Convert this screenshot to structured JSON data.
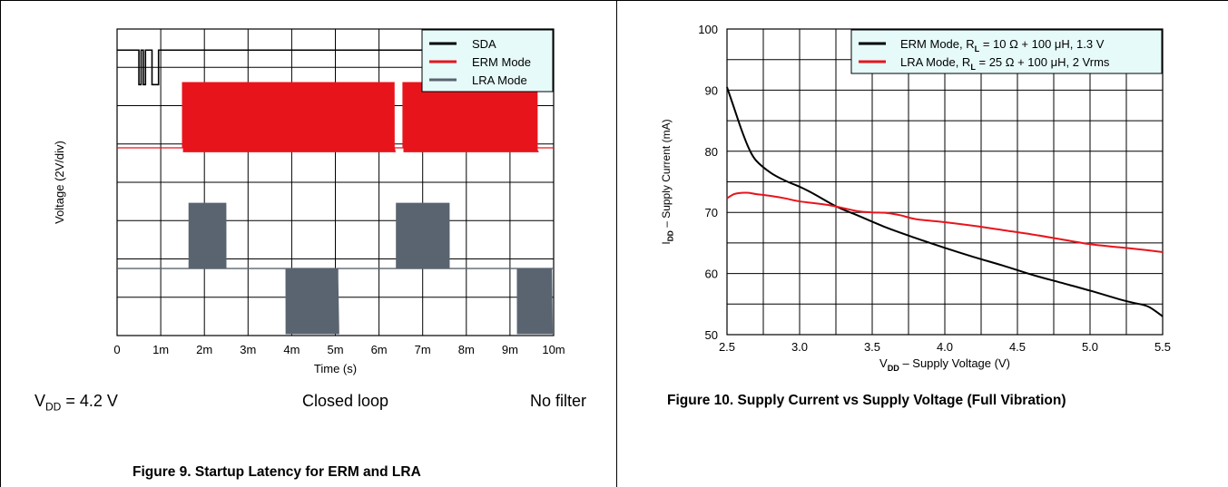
{
  "colors": {
    "sda": "#000000",
    "erm": "#e8141c",
    "lra": "#5a6470",
    "erm_current": "#000000",
    "lra_current": "#e8141c",
    "legend_bg": "#e6fafa"
  },
  "left_panel": {
    "conditions": {
      "vdd_prefix": "V",
      "vdd_sub": "DD",
      "vdd_suffix": " = 4.2 V",
      "loop": "Closed loop",
      "filter": "No filter"
    },
    "caption": "Figure 9. Startup Latency for ERM and LRA"
  },
  "right_panel": {
    "caption": "Figure 10. Supply Current vs Supply Voltage (Full Vibration)"
  },
  "chart_data": [
    {
      "type": "line",
      "xlabel": "Time (s)",
      "ylabel": "Voltage (2V/div)",
      "x_tick_labels": [
        "0",
        "1m",
        "2m",
        "3m",
        "4m",
        "5m",
        "6m",
        "7m",
        "8m",
        "9m",
        "10m"
      ],
      "xlim": [
        0,
        10
      ],
      "ylim": [
        0,
        8
      ],
      "grid": true,
      "legend_position": "top-right",
      "series": [
        {
          "name": "SDA",
          "low": 6.55,
          "high": 7.45,
          "pulses": [
            [
              0.5,
              0.55
            ],
            [
              0.6,
              0.65
            ],
            [
              0.8,
              0.95
            ]
          ]
        },
        {
          "name": "ERM Mode",
          "baseline": 4.9,
          "low": 4.8,
          "high": 6.6,
          "bursts": [
            [
              1.5,
              6.35
            ],
            [
              6.55,
              9.6
            ]
          ],
          "period": 0.0455
        },
        {
          "name": "LRA Mode",
          "baseline": 1.75,
          "bursts": [
            {
              "start": 1.65,
              "end": 2.5,
              "low": 1.75,
              "high": 3.45
            },
            {
              "start": 3.85,
              "end": 5.05,
              "low": 0.05,
              "high": 1.75
            },
            {
              "start": 6.4,
              "end": 7.6,
              "low": 1.75,
              "high": 3.45
            },
            {
              "start": 9.15,
              "end": 9.95,
              "low": 0.05,
              "high": 1.75
            }
          ],
          "period": 0.0455
        }
      ]
    },
    {
      "type": "line",
      "xlabel_prefix": "V",
      "xlabel_sub": "DD",
      "xlabel_suffix": " – Supply Voltage (V)",
      "ylabel_prefix": "I",
      "ylabel_sub": "DD",
      "ylabel_suffix": " – Supply Current (mA)",
      "xlim": [
        2.5,
        5.5
      ],
      "ylim": [
        50,
        100
      ],
      "x_ticks": [
        2.5,
        3.0,
        3.5,
        4.0,
        4.5,
        5.0,
        5.5
      ],
      "x_tick_labels": [
        "2.5",
        "3.0",
        "3.5",
        "4.0",
        "4.5",
        "5.0",
        "5.5"
      ],
      "y_ticks": [
        50,
        60,
        70,
        80,
        90,
        100
      ],
      "y_tick_labels": [
        "50",
        "60",
        "70",
        "80",
        "90",
        "100"
      ],
      "grid": true,
      "legend_position": "top-right",
      "legend": [
        {
          "prefix": "ERM Mode, R",
          "sub": "L",
          "suffix": " = 10 Ω + 100 μH, 1.3 V"
        },
        {
          "prefix": "LRA Mode, R",
          "sub": "L",
          "suffix": " = 25 Ω + 100 μH, 2 Vrms"
        }
      ],
      "series": [
        {
          "name": "ERM Mode",
          "x": [
            2.5,
            2.55,
            2.6,
            2.65,
            2.7,
            2.8,
            2.9,
            3.0,
            3.1,
            3.25,
            3.4,
            3.6,
            3.8,
            4.0,
            4.2,
            4.4,
            4.6,
            4.8,
            5.0,
            5.2,
            5.3,
            5.4,
            5.5
          ],
          "y": [
            90.5,
            87.0,
            83.5,
            80.5,
            78.5,
            76.5,
            75.2,
            74.2,
            73.0,
            71.0,
            69.5,
            67.5,
            65.8,
            64.2,
            62.7,
            61.3,
            59.8,
            58.5,
            57.2,
            55.8,
            55.2,
            54.6,
            53.0
          ]
        },
        {
          "name": "LRA Mode",
          "x": [
            2.5,
            2.55,
            2.6,
            2.65,
            2.7,
            2.8,
            2.9,
            3.0,
            3.2,
            3.4,
            3.5,
            3.6,
            3.7,
            3.8,
            4.0,
            4.2,
            4.4,
            4.6,
            4.8,
            5.0,
            5.2,
            5.4,
            5.5
          ],
          "y": [
            72.3,
            73.0,
            73.2,
            73.2,
            73.0,
            72.7,
            72.3,
            71.8,
            71.2,
            70.2,
            70.0,
            69.9,
            69.5,
            68.9,
            68.4,
            67.8,
            67.1,
            66.4,
            65.6,
            64.8,
            64.3,
            63.8,
            63.5
          ]
        }
      ]
    }
  ]
}
